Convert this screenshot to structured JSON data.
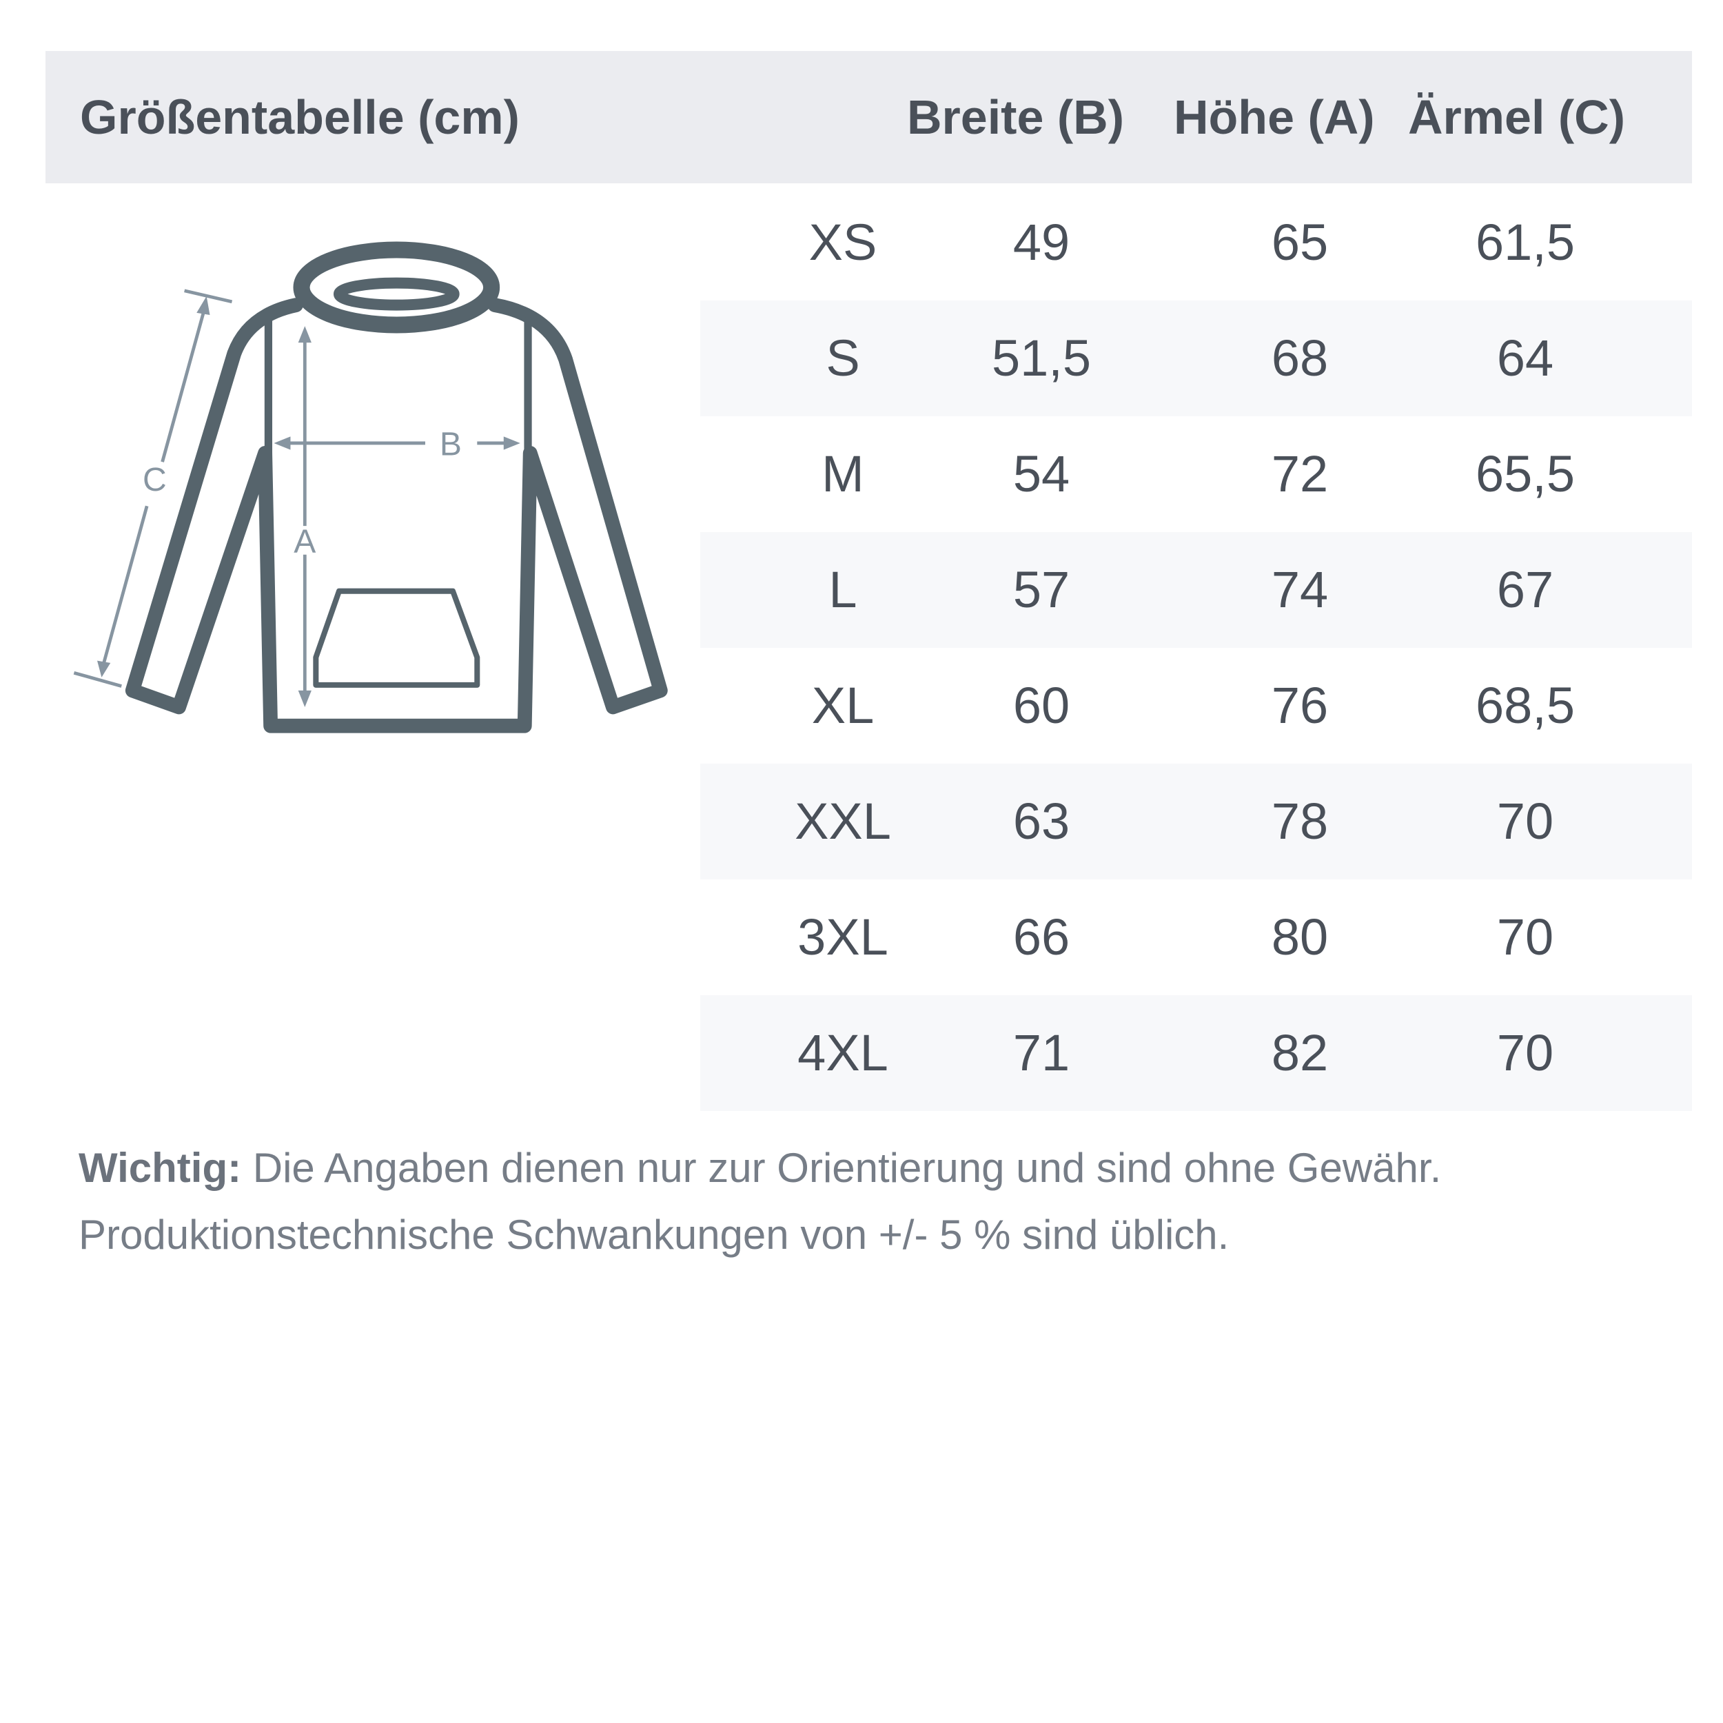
{
  "header": {
    "title": "Größentabelle (cm)",
    "columns": [
      "Breite (B)",
      "Höhe (A)",
      "Ärmel (C)"
    ]
  },
  "rows": [
    {
      "size": "XS",
      "breite": "49",
      "hoehe": "65",
      "aermel": "61,5"
    },
    {
      "size": "S",
      "breite": "51,5",
      "hoehe": "68",
      "aermel": "64"
    },
    {
      "size": "M",
      "breite": "54",
      "hoehe": "72",
      "aermel": "65,5"
    },
    {
      "size": "L",
      "breite": "57",
      "hoehe": "74",
      "aermel": "67"
    },
    {
      "size": "XL",
      "breite": "60",
      "hoehe": "76",
      "aermel": "68,5"
    },
    {
      "size": "XXL",
      "breite": "63",
      "hoehe": "78",
      "aermel": "70"
    },
    {
      "size": "3XL",
      "breite": "66",
      "hoehe": "80",
      "aermel": "70"
    },
    {
      "size": "4XL",
      "breite": "71",
      "hoehe": "82",
      "aermel": "70"
    }
  ],
  "diagram": {
    "label_a": "A",
    "label_b": "B",
    "label_c": "C",
    "icon": "hoodie-icon"
  },
  "note": {
    "bold": "Wichtig:",
    "line1": " Die Angaben dienen nur zur Orientierung und sind ohne Gewähr.",
    "line2": "Produktionstechnische Schwankungen von +/- 5 % sind üblich."
  },
  "colors": {
    "header_bg": "#ebecf0",
    "stripe": "#f7f8fa",
    "outline": "#56646c",
    "arrows": "#8795a1"
  }
}
